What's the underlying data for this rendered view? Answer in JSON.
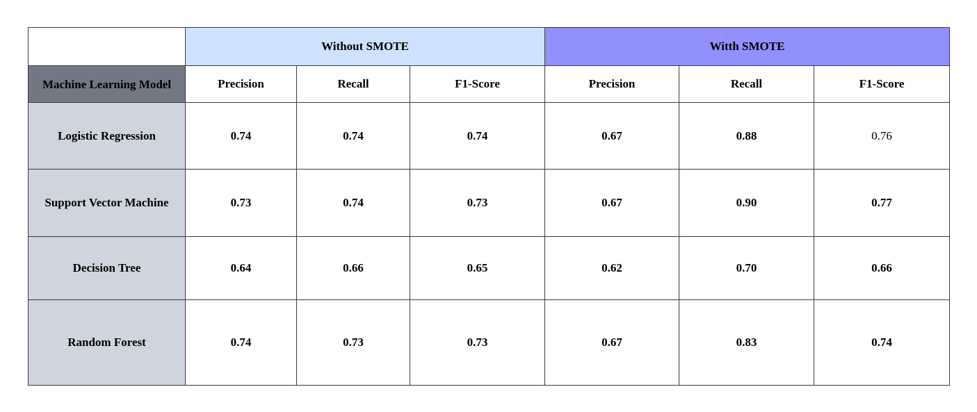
{
  "chart_data": {
    "type": "table",
    "row_header": "Machine Learning Model",
    "column_groups": [
      {
        "name": "Without SMOTE",
        "color": "#cfe2fb",
        "columns": [
          "Precision",
          "Recall",
          "F1-Score"
        ]
      },
      {
        "name": "Witth SMOTE",
        "color": "#9190fc",
        "columns": [
          "Precision",
          "Recall",
          "F1-Score"
        ]
      }
    ],
    "rows": [
      {
        "model": "Logistic Regression",
        "values": [
          "0.74",
          "0.74",
          "0.74",
          "0.67",
          "0.88",
          "0.76"
        ]
      },
      {
        "model": "Support Vector Machine",
        "values": [
          "0.73",
          "0.74",
          "0.73",
          "0.67",
          "0.90",
          "0.77"
        ]
      },
      {
        "model": "Decision Tree",
        "values": [
          "0.64",
          "0.66",
          "0.65",
          "0.62",
          "0.70",
          "0.66"
        ]
      },
      {
        "model": "Random Forest",
        "values": [
          "0.74",
          "0.73",
          "0.73",
          "0.67",
          "0.83",
          "0.74"
        ]
      }
    ]
  },
  "colors": {
    "model_header_bg": "#727883",
    "model_column_bg": "#cfd5de",
    "border": "#3a3a3a"
  }
}
